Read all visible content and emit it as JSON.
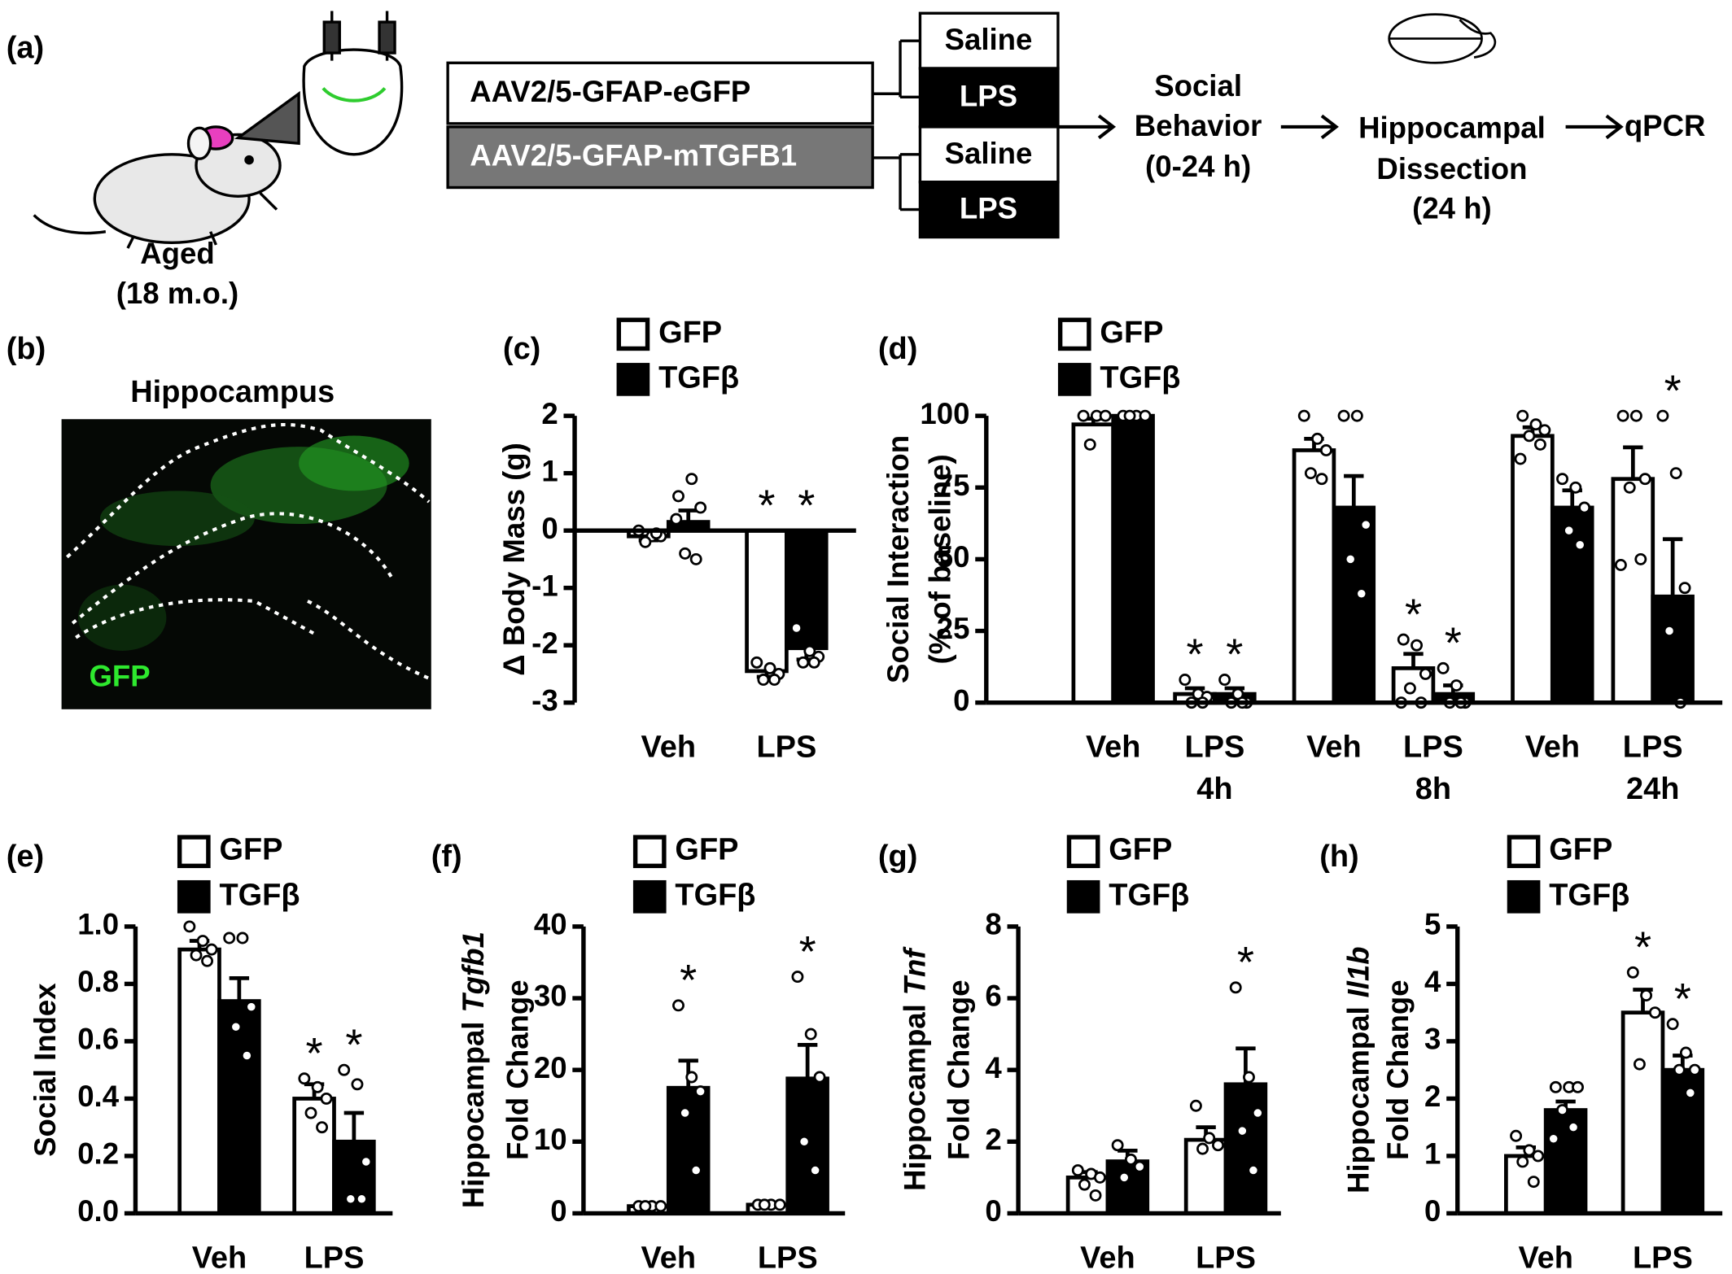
{
  "panels": {
    "a": {
      "label": "(a)",
      "subject": [
        "Aged",
        "(18 m.o.)"
      ],
      "vectors": [
        "AAV2/5-GFAP-eGFP",
        "AAV2/5-GFAP-mTGFB1"
      ],
      "treatments": [
        "Saline",
        "LPS",
        "Saline",
        "LPS"
      ],
      "steps": [
        [
          "Social",
          "Behavior",
          "(0-24 h)"
        ],
        [
          "Hippocampal",
          "Dissection",
          "(24 h)"
        ],
        [
          "qPCR"
        ]
      ]
    },
    "b": {
      "label": "(b)",
      "title": "Hippocampus",
      "stain": "GFP"
    }
  },
  "chart_data": [
    {
      "type": "bar",
      "label": "(c)",
      "ylabel": [
        "Δ Body Mass (g)"
      ],
      "categories": [
        "Veh",
        "LPS"
      ],
      "ylim": [
        -3,
        2
      ],
      "yticks": [
        -3,
        -2,
        -1,
        0,
        1,
        2
      ],
      "series": [
        {
          "name": "GFP",
          "color": "#ffffff",
          "values": [
            -0.1,
            -2.45
          ],
          "errors": [
            0.07,
            0.1
          ],
          "significance": [
            null,
            "*"
          ],
          "points": [
            [
              0,
              -0.1,
              -0.1,
              -0.2,
              -0.05
            ],
            [
              -2.3,
              -2.4,
              -2.5,
              -2.6,
              -2.6
            ]
          ]
        },
        {
          "name": "TGFβ",
          "color": "#000000",
          "values": [
            0.15,
            -2.05
          ],
          "errors": [
            0.2,
            0.2
          ],
          "significance": [
            null,
            "*"
          ],
          "points": [
            [
              0.6,
              0.9,
              0.4,
              -0.4,
              -0.5,
              0.2
            ],
            [
              -1.7,
              -2.1,
              -2.2,
              -2.3,
              -2.3
            ]
          ]
        }
      ]
    },
    {
      "type": "bar",
      "label": "(d)",
      "ylabel": [
        "Social Interaction",
        "(% of baseline)"
      ],
      "categories": [
        "Veh",
        "LPS",
        "Veh",
        "LPS",
        "Veh",
        "LPS"
      ],
      "group_labels": [
        "4h",
        "8h",
        "24h"
      ],
      "ylim": [
        0,
        100
      ],
      "yticks": [
        0,
        25,
        50,
        75,
        100
      ],
      "series": [
        {
          "name": "GFP",
          "color": "#ffffff",
          "values": [
            97,
            3,
            88,
            12,
            93,
            78
          ],
          "errors": [
            2,
            2,
            4,
            5,
            3,
            11
          ],
          "significance": [
            null,
            "*",
            null,
            "*",
            null,
            null
          ],
          "points": [
            [
              100,
              100,
              100,
              90
            ],
            [
              8,
              3,
              2,
              0,
              0
            ],
            [
              100,
              92,
              88,
              80,
              78
            ],
            [
              22,
              20,
              10,
              5,
              0,
              0
            ],
            [
              100,
              97,
              95,
              93,
              90,
              85
            ],
            [
              100,
              100,
              78,
              75,
              50,
              48
            ]
          ]
        },
        {
          "name": "TGFβ",
          "color": "#000000",
          "values": [
            100,
            3,
            68,
            3,
            68,
            37
          ],
          "errors": [
            0,
            2,
            11,
            3,
            6,
            20
          ],
          "significance": [
            null,
            "*",
            null,
            "*",
            null,
            "*"
          ],
          "points": [
            [
              100,
              100,
              100,
              100
            ],
            [
              8,
              3,
              0,
              0,
              0
            ],
            [
              100,
              100,
              62,
              50,
              38
            ],
            [
              12,
              6,
              0,
              0,
              0
            ],
            [
              78,
              75,
              68,
              60,
              55
            ],
            [
              100,
              80,
              40,
              25,
              0
            ]
          ]
        }
      ]
    },
    {
      "type": "bar",
      "label": "(e)",
      "ylabel": [
        "Social Index"
      ],
      "categories": [
        "Veh",
        "LPS"
      ],
      "ylim": [
        0,
        1
      ],
      "yticks": [
        {
          "value": 0,
          "label": "0.0"
        },
        0.2,
        0.4,
        0.6,
        0.8,
        {
          "value": 1,
          "label": "1.0"
        }
      ],
      "series": [
        {
          "name": "GFP",
          "color": "#ffffff",
          "values": [
            0.92,
            0.4
          ],
          "errors": [
            0.03,
            0.05
          ],
          "significance": [
            null,
            "*"
          ],
          "points": [
            [
              1.0,
              0.95,
              0.92,
              0.9,
              0.88
            ],
            [
              0.47,
              0.44,
              0.4,
              0.35,
              0.3
            ]
          ]
        },
        {
          "name": "TGFβ",
          "color": "#000000",
          "values": [
            0.74,
            0.25
          ],
          "errors": [
            0.08,
            0.1
          ],
          "significance": [
            null,
            "*"
          ],
          "points": [
            [
              0.96,
              0.96,
              0.72,
              0.65,
              0.55
            ],
            [
              0.5,
              0.45,
              0.18,
              0.05,
              0.05
            ]
          ]
        }
      ]
    },
    {
      "type": "bar",
      "label": "(f)",
      "ylabel": [
        "Hippocampal",
        "Fold Change"
      ],
      "ylabel_gene": "Tgfb1",
      "categories": [
        "Veh",
        "LPS"
      ],
      "ylim": [
        0,
        40
      ],
      "yticks": [
        0,
        10,
        20,
        30,
        40
      ],
      "series": [
        {
          "name": "GFP",
          "color": "#ffffff",
          "values": [
            1,
            1.2
          ],
          "errors": [
            0.1,
            0.1
          ],
          "significance": [
            null,
            null
          ],
          "points": [
            [
              1,
              1,
              1,
              1
            ],
            [
              1.2,
              1.2,
              1.2,
              1.2
            ]
          ]
        },
        {
          "name": "TGFβ",
          "color": "#000000",
          "values": [
            17.5,
            18.8
          ],
          "errors": [
            3.8,
            4.7
          ],
          "significance": [
            "*",
            "*"
          ],
          "points": [
            [
              29,
              19,
              17,
              14,
              6
            ],
            [
              33,
              25,
              19,
              10,
              6
            ]
          ]
        }
      ]
    },
    {
      "type": "bar",
      "label": "(g)",
      "ylabel": [
        "Hippocampal",
        "Fold Change"
      ],
      "ylabel_gene": "Tnf",
      "categories": [
        "Veh",
        "LPS"
      ],
      "ylim": [
        0,
        8
      ],
      "yticks": [
        0,
        2,
        4,
        6,
        8
      ],
      "series": [
        {
          "name": "GFP",
          "color": "#ffffff",
          "values": [
            1.0,
            2.05
          ],
          "errors": [
            0.15,
            0.35
          ],
          "significance": [
            null,
            null
          ],
          "points": [
            [
              1.2,
              1.1,
              1.0,
              0.8,
              0.5
            ],
            [
              3.0,
              2.1,
              1.9,
              1.8
            ]
          ]
        },
        {
          "name": "TGFβ",
          "color": "#000000",
          "values": [
            1.45,
            3.6
          ],
          "errors": [
            0.3,
            1.0
          ],
          "significance": [
            null,
            "*"
          ],
          "points": [
            [
              1.9,
              1.5,
              1.3,
              1.0
            ],
            [
              6.3,
              3.8,
              2.8,
              2.3,
              1.2
            ]
          ]
        }
      ]
    },
    {
      "type": "bar",
      "label": "(h)",
      "ylabel": [
        "Hippocampal",
        "Fold Change"
      ],
      "ylabel_gene": "Il1b",
      "categories": [
        "Veh",
        "LPS"
      ],
      "ylim": [
        0,
        5
      ],
      "yticks": [
        0,
        1,
        2,
        3,
        4,
        5
      ],
      "series": [
        {
          "name": "GFP",
          "color": "#ffffff",
          "values": [
            1.0,
            3.5
          ],
          "errors": [
            0.15,
            0.4
          ],
          "significance": [
            null,
            "*"
          ],
          "points": [
            [
              1.35,
              1.1,
              1.0,
              0.9,
              0.55
            ],
            [
              4.2,
              3.8,
              3.5,
              2.6
            ]
          ]
        },
        {
          "name": "TGFβ",
          "color": "#000000",
          "values": [
            1.8,
            2.5
          ],
          "errors": [
            0.15,
            0.25
          ],
          "significance": [
            null,
            "*"
          ],
          "points": [
            [
              2.2,
              2.2,
              2.2,
              1.8,
              1.5,
              1.3
            ],
            [
              3.3,
              2.8,
              2.5,
              2.5,
              2.1
            ]
          ]
        }
      ]
    }
  ]
}
